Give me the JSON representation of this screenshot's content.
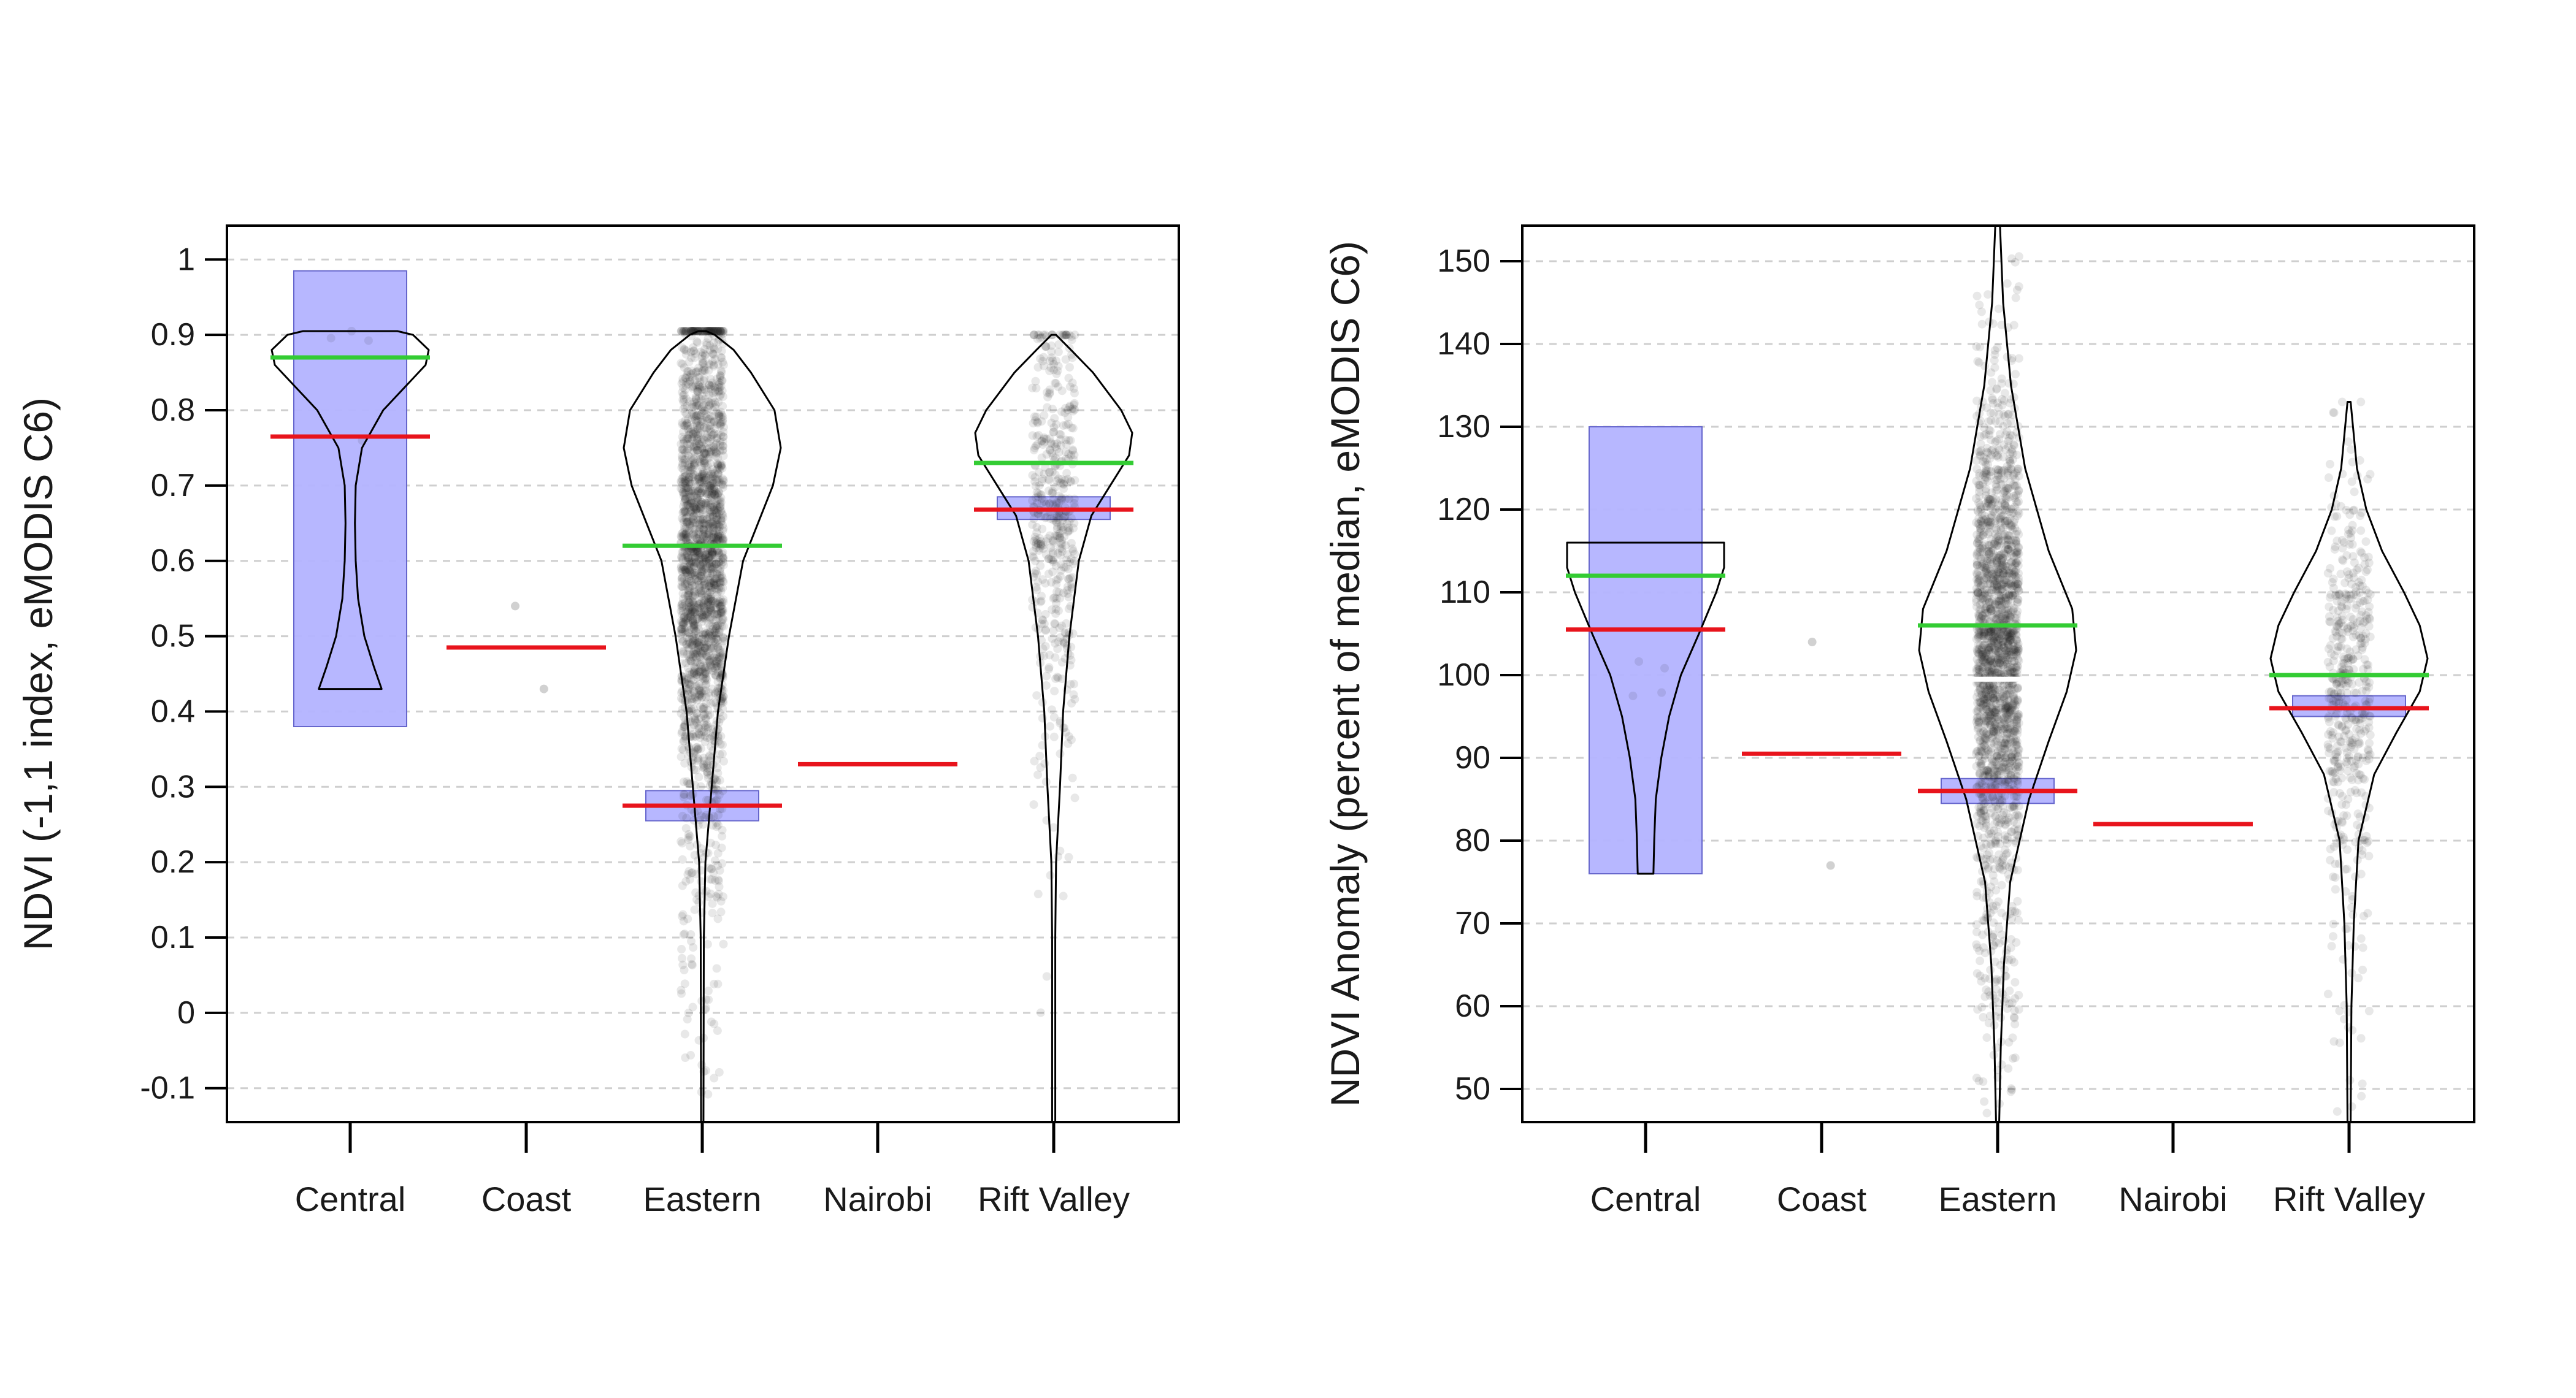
{
  "chart_data": [
    {
      "type": "pirateplot",
      "ylabel": "NDVI (-1,1 index, eMODIS C6)",
      "xlabel": "",
      "categories": [
        "Central",
        "Coast",
        "Eastern",
        "Nairobi",
        "Rift Valley"
      ],
      "ylim": [
        -0.145,
        1.045
      ],
      "yticks": [
        -0.1,
        0,
        0.1,
        0.2,
        0.3,
        0.4,
        0.5,
        0.6,
        0.7,
        0.8,
        0.9,
        1
      ],
      "ytick_labels": [
        "-0.1",
        "0",
        "0.1",
        "0.2",
        "0.3",
        "0.4",
        "0.5",
        "0.6",
        "0.7",
        "0.8",
        "0.9",
        "1"
      ],
      "grid": "horizontal dashed",
      "colors": {
        "inference_band": "#b3b3ff",
        "band_border": "#6666cc",
        "mean_line": "#e8141c",
        "median_line": "#33cc33",
        "points": "#1a1a1a",
        "bean": "#000000"
      },
      "groups": [
        {
          "name": "Central",
          "mean": 0.765,
          "median": 0.87,
          "band": [
            0.38,
            0.985
          ],
          "range": [
            0.43,
            0.905
          ],
          "point_count": 4,
          "point_center": 0.82,
          "point_spread": 0.05,
          "violin": [
            [
              0.43,
              0.4
            ],
            [
              0.46,
              0.3
            ],
            [
              0.5,
              0.18
            ],
            [
              0.55,
              0.1
            ],
            [
              0.6,
              0.07
            ],
            [
              0.65,
              0.06
            ],
            [
              0.7,
              0.07
            ],
            [
              0.75,
              0.15
            ],
            [
              0.8,
              0.42
            ],
            [
              0.84,
              0.78
            ],
            [
              0.86,
              0.96
            ],
            [
              0.88,
              1.0
            ],
            [
              0.9,
              0.8
            ],
            [
              0.905,
              0.6
            ]
          ]
        },
        {
          "name": "Coast",
          "mean": 0.485,
          "points": [
            0.54,
            0.43
          ]
        },
        {
          "name": "Eastern",
          "mean": 0.275,
          "median": 0.62,
          "band": [
            0.255,
            0.295
          ],
          "range": [
            -0.145,
            0.905
          ],
          "point_count": 2200,
          "point_center": 0.64,
          "point_spread": 0.16,
          "violin": [
            [
              -0.145,
              0.015
            ],
            [
              0.1,
              0.02
            ],
            [
              0.2,
              0.04
            ],
            [
              0.3,
              0.12
            ],
            [
              0.4,
              0.2
            ],
            [
              0.5,
              0.34
            ],
            [
              0.6,
              0.52
            ],
            [
              0.7,
              0.9
            ],
            [
              0.75,
              1.0
            ],
            [
              0.8,
              0.92
            ],
            [
              0.85,
              0.62
            ],
            [
              0.88,
              0.4
            ],
            [
              0.9,
              0.16
            ],
            [
              0.905,
              0.05
            ]
          ]
        },
        {
          "name": "Nairobi",
          "mean": 0.33
        },
        {
          "name": "Rift Valley",
          "mean": 0.668,
          "median": 0.73,
          "band": [
            0.655,
            0.685
          ],
          "range": [
            -0.145,
            0.9
          ],
          "point_count": 500,
          "point_center": 0.68,
          "point_spread": 0.13,
          "violin": [
            [
              -0.145,
              0.02
            ],
            [
              0.1,
              0.02
            ],
            [
              0.2,
              0.03
            ],
            [
              0.3,
              0.08
            ],
            [
              0.4,
              0.12
            ],
            [
              0.5,
              0.2
            ],
            [
              0.6,
              0.32
            ],
            [
              0.66,
              0.48
            ],
            [
              0.7,
              0.72
            ],
            [
              0.74,
              0.96
            ],
            [
              0.77,
              1.0
            ],
            [
              0.8,
              0.86
            ],
            [
              0.85,
              0.5
            ],
            [
              0.88,
              0.22
            ],
            [
              0.9,
              0.03
            ]
          ]
        }
      ]
    },
    {
      "type": "pirateplot",
      "ylabel": "NDVI Anomaly (percent of median, eMODIS C6)",
      "xlabel": "",
      "categories": [
        "Central",
        "Coast",
        "Eastern",
        "Nairobi",
        "Rift Valley"
      ],
      "ylim": [
        46,
        154.3
      ],
      "yticks": [
        50,
        60,
        70,
        80,
        90,
        100,
        110,
        120,
        130,
        140,
        150
      ],
      "ytick_labels": [
        "50",
        "60",
        "70",
        "80",
        "90",
        "100",
        "110",
        "120",
        "130",
        "140",
        "150"
      ],
      "grid": "horizontal dashed",
      "colors": {
        "inference_band": "#b3b3ff",
        "band_border": "#6666cc",
        "mean_line": "#e8141c",
        "median_line": "#33cc33",
        "points": "#1a1a1a",
        "bean": "#000000",
        "white_line": "#ffffff"
      },
      "groups": [
        {
          "name": "Central",
          "mean": 105.5,
          "median": 112,
          "band": [
            76,
            130
          ],
          "range": [
            76,
            116
          ],
          "point_count": 4,
          "point_center": 108,
          "point_spread": 10,
          "violin": [
            [
              76,
              0.1
            ],
            [
              80,
              0.11
            ],
            [
              85,
              0.13
            ],
            [
              90,
              0.2
            ],
            [
              95,
              0.3
            ],
            [
              100,
              0.45
            ],
            [
              105,
              0.68
            ],
            [
              110,
              0.9
            ],
            [
              113,
              1.0
            ],
            [
              116,
              1.0
            ]
          ]
        },
        {
          "name": "Coast",
          "mean": 90.5,
          "points": [
            104,
            77
          ]
        },
        {
          "name": "Eastern",
          "mean": 86,
          "median": 106,
          "band": [
            84.5,
            87.5
          ],
          "range": [
            46,
            154.3
          ],
          "point_count": 2000,
          "point_center": 106,
          "point_spread": 15,
          "white_line": 99.5,
          "violin": [
            [
              46,
              0.02
            ],
            [
              55,
              0.04
            ],
            [
              65,
              0.08
            ],
            [
              75,
              0.16
            ],
            [
              85,
              0.4
            ],
            [
              92,
              0.65
            ],
            [
              98,
              0.88
            ],
            [
              103,
              1.0
            ],
            [
              108,
              0.95
            ],
            [
              115,
              0.65
            ],
            [
              125,
              0.35
            ],
            [
              135,
              0.17
            ],
            [
              145,
              0.07
            ],
            [
              154.3,
              0.03
            ]
          ]
        },
        {
          "name": "Nairobi",
          "mean": 82
        },
        {
          "name": "Rift Valley",
          "mean": 96,
          "median": 100,
          "band": [
            95,
            97.5
          ],
          "range": [
            46,
            133
          ],
          "point_count": 500,
          "point_center": 100,
          "point_spread": 12,
          "violin": [
            [
              46,
              0.02
            ],
            [
              60,
              0.03
            ],
            [
              70,
              0.06
            ],
            [
              80,
              0.12
            ],
            [
              88,
              0.32
            ],
            [
              93,
              0.6
            ],
            [
              98,
              0.9
            ],
            [
              102,
              1.0
            ],
            [
              106,
              0.9
            ],
            [
              110,
              0.7
            ],
            [
              115,
              0.42
            ],
            [
              120,
              0.22
            ],
            [
              125,
              0.1
            ],
            [
              133,
              0.02
            ]
          ]
        }
      ]
    }
  ]
}
